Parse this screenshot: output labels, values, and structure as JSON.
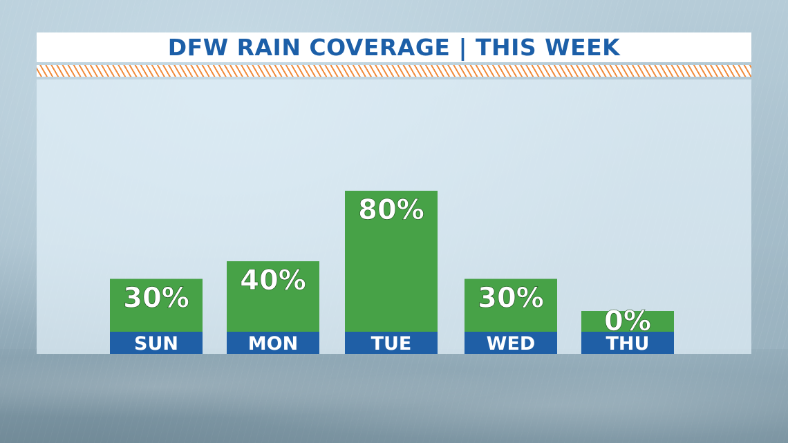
{
  "title": "DFW RAIN COVERAGE | THIS WEEK",
  "colors": {
    "title_text": "#1c5fa8",
    "bar": "#47a247",
    "day_label_bg": "#1f5fa6",
    "stripe": "#f08a3a"
  },
  "chart_data": {
    "type": "bar",
    "title": "DFW RAIN COVERAGE | THIS WEEK",
    "categories": [
      "SUN",
      "MON",
      "TUE",
      "WED",
      "THU"
    ],
    "values": [
      30,
      40,
      80,
      30,
      0
    ],
    "value_labels": [
      "30%",
      "40%",
      "80%",
      "30%",
      "0%"
    ],
    "unit": "%",
    "ylim": [
      0,
      100
    ],
    "grid": false,
    "legend": "none"
  }
}
